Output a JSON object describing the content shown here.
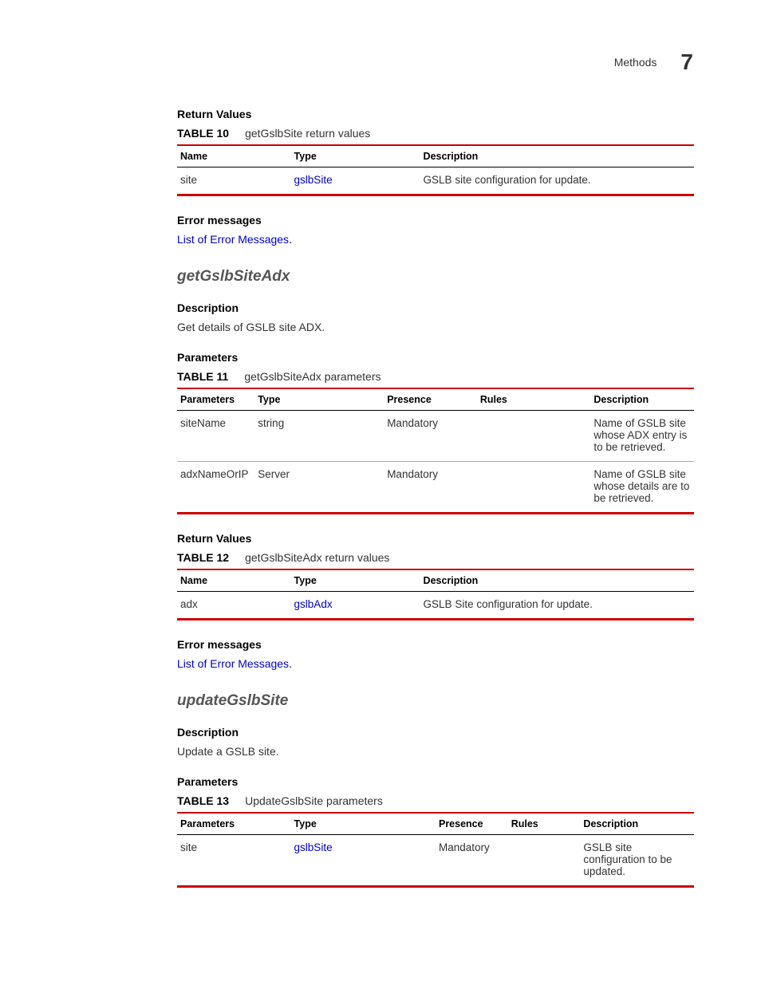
{
  "header": {
    "label": "Methods",
    "chapter_number": "7"
  },
  "colors": {
    "table_border": "#cc0000",
    "link": "#0000cc",
    "heading_gray": "#555555",
    "body_text": "#333333"
  },
  "sections": [
    {
      "heading": "Return Values",
      "table": {
        "number": "TABLE 10",
        "caption": "getGslbSite return values",
        "columns": [
          "Name",
          "Type",
          "Description"
        ],
        "col_widths": [
          "22%",
          "25%",
          "53%"
        ],
        "rows": [
          {
            "cells": [
              "site",
              "gslbSite",
              "GSLB site configuration for update."
            ],
            "link_col": 1
          }
        ]
      }
    },
    {
      "heading": "Error messages",
      "link_text": "List of Error Messages",
      "trailing": "."
    }
  ],
  "method1": {
    "title": "getGslbSiteAdx",
    "description_heading": "Description",
    "description_text": "Get details of GSLB site ADX.",
    "params_heading": "Parameters",
    "params_table": {
      "number": "TABLE 11",
      "caption": "getGslbSiteAdx parameters",
      "columns": [
        "Parameters",
        "Type",
        "Presence",
        "Rules",
        "Description"
      ],
      "col_widths": [
        "15%",
        "25%",
        "18%",
        "22%",
        "20%"
      ],
      "rows": [
        {
          "cells": [
            "siteName",
            "string",
            "Mandatory",
            "",
            "Name of GSLB site whose ADX entry is to be retrieved."
          ]
        },
        {
          "cells": [
            "adxNameOrIP",
            "Server",
            "Mandatory",
            "",
            "Name of GSLB site whose details are to be retrieved."
          ]
        }
      ]
    },
    "return_heading": "Return Values",
    "return_table": {
      "number": "TABLE 12",
      "caption": "getGslbSiteAdx return values",
      "columns": [
        "Name",
        "Type",
        "Description"
      ],
      "col_widths": [
        "22%",
        "25%",
        "53%"
      ],
      "rows": [
        {
          "cells": [
            "adx",
            "gslbAdx",
            "GSLB Site configuration for update."
          ],
          "link_col": 1
        }
      ]
    },
    "error_heading": "Error messages",
    "error_link": "List of Error Messages",
    "error_trailing": "."
  },
  "method2": {
    "title": "updateGslbSite",
    "description_heading": "Description",
    "description_text": "Update a GSLB site.",
    "params_heading": "Parameters",
    "params_table": {
      "number": "TABLE 13",
      "caption": "UpdateGslbSite parameters",
      "columns": [
        "Parameters",
        "Type",
        "Presence",
        "Rules",
        "Description"
      ],
      "col_widths": [
        "22%",
        "28%",
        "14%",
        "14%",
        "22%"
      ],
      "rows": [
        {
          "cells": [
            "site",
            "gslbSite",
            "Mandatory",
            "",
            "GSLB site configuration to be updated."
          ],
          "link_col": 1
        }
      ]
    }
  }
}
